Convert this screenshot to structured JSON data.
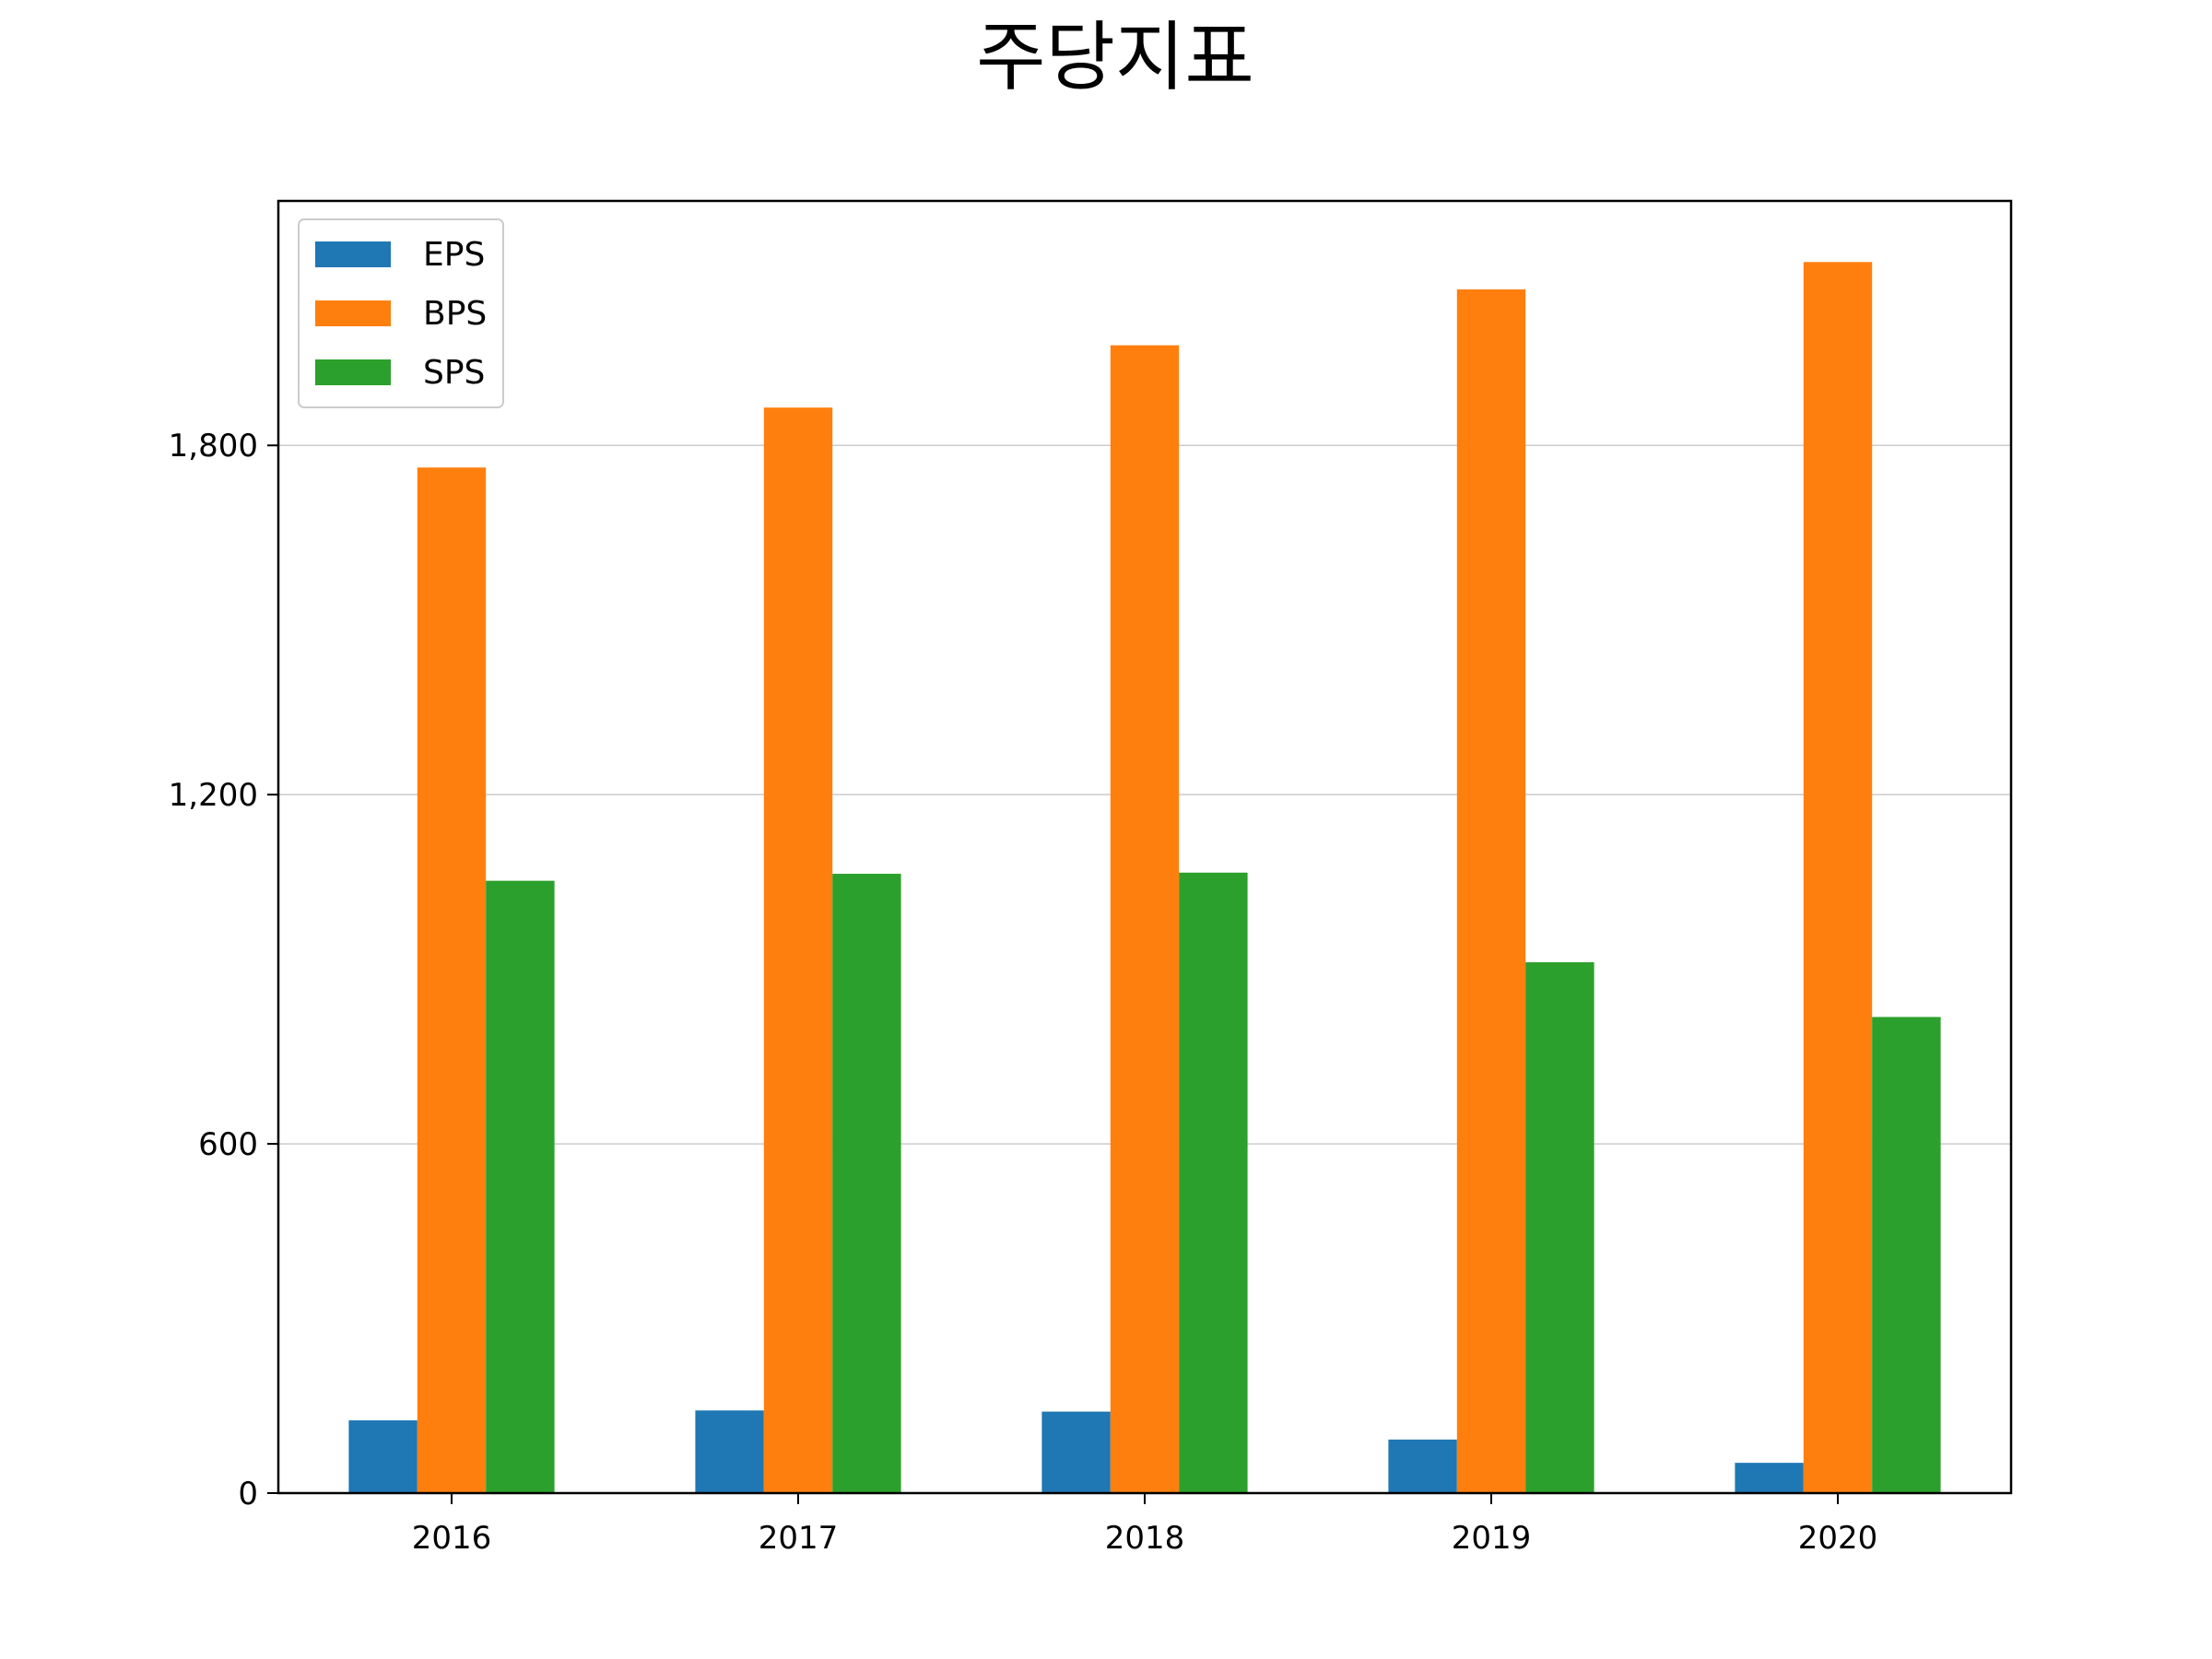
{
  "chart_data": {
    "type": "bar",
    "title": "주당지표",
    "xlabel": "",
    "ylabel": "",
    "categories": [
      "2016",
      "2017",
      "2018",
      "2019",
      "2020"
    ],
    "series": [
      {
        "name": "EPS",
        "color": "#1f77b4",
        "values": [
          125,
          142,
          140,
          92,
          52
        ]
      },
      {
        "name": "BPS",
        "color": "#ff7f0e",
        "values": [
          1762,
          1865,
          1972,
          2068,
          2115
        ]
      },
      {
        "name": "SPS",
        "color": "#2ca02c",
        "values": [
          1052,
          1064,
          1066,
          912,
          818
        ]
      }
    ],
    "ylim": [
      0,
      2220
    ],
    "yticks": [
      0,
      600,
      1200,
      1800
    ],
    "ytick_labels": [
      "0",
      "600",
      "1,200",
      "1,800"
    ],
    "grid": "y",
    "legend": "upper-left"
  }
}
